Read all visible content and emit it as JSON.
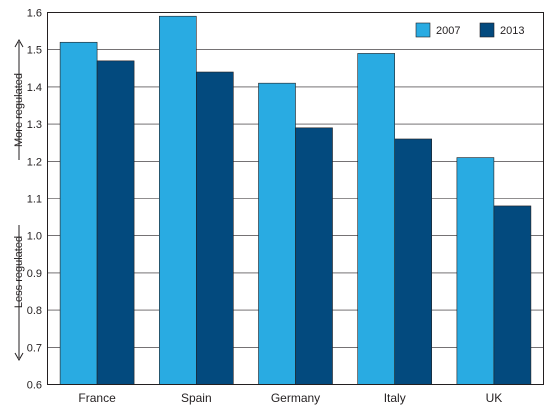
{
  "chart_data": {
    "type": "bar",
    "categories": [
      "France",
      "Spain",
      "Germany",
      "Italy",
      "UK"
    ],
    "series": [
      {
        "name": "2007",
        "color": "#29abe2",
        "values": [
          1.52,
          1.59,
          1.41,
          1.49,
          1.21
        ]
      },
      {
        "name": "2013",
        "color": "#034a7e",
        "values": [
          1.47,
          1.44,
          1.29,
          1.26,
          1.08
        ]
      }
    ],
    "ylim": [
      0.6,
      1.6
    ],
    "yticks": [
      "0.6",
      "0.7",
      "0.8",
      "0.9",
      "1.0",
      "1.1",
      "1.2",
      "1.3",
      "1.4",
      "1.5",
      "1.6"
    ],
    "ylabel_top": "More regulated",
    "ylabel_bottom": "Less regulated",
    "legend_position": "top-right",
    "grid": true
  }
}
